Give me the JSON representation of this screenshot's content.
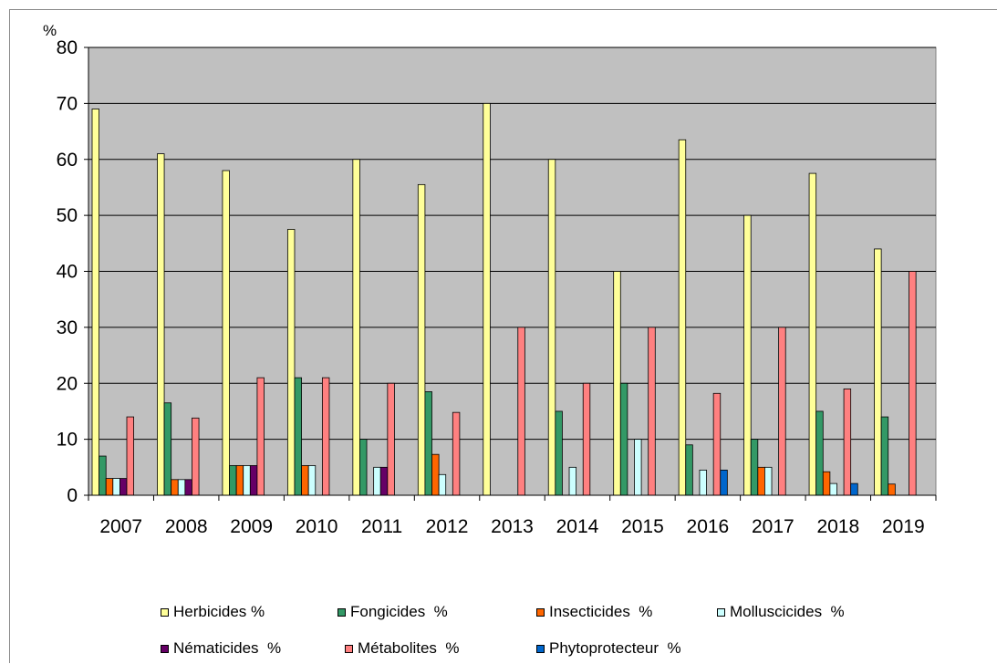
{
  "chart_data": {
    "type": "bar",
    "ylabel": "%",
    "ylim": [
      0,
      80
    ],
    "yticks": [
      0,
      10,
      20,
      30,
      40,
      50,
      60,
      70,
      80
    ],
    "grid": true,
    "legend_position": "bottom",
    "categories": [
      "2007",
      "2008",
      "2009",
      "2010",
      "2011",
      "2012",
      "2013",
      "2014",
      "2015",
      "2016",
      "2017",
      "2018",
      "2019"
    ],
    "series": [
      {
        "name": "Herbicides %",
        "color": "#ffff99",
        "values": [
          69,
          61,
          58,
          47.5,
          60,
          55.5,
          70,
          60,
          40,
          63.5,
          50,
          57.5,
          44
        ]
      },
      {
        "name": "Fongicides  %",
        "color": "#339966",
        "values": [
          7,
          16.5,
          5.3,
          21,
          10,
          18.5,
          0,
          15,
          20,
          9,
          10,
          15,
          14
        ]
      },
      {
        "name": "Insecticides  %",
        "color": "#ff6600",
        "values": [
          3,
          2.8,
          5.3,
          5.3,
          0,
          7.3,
          0,
          0,
          0,
          0,
          5,
          4.2,
          2
        ]
      },
      {
        "name": "Molluscicides  %",
        "color": "#ccffff",
        "values": [
          3,
          2.8,
          5.3,
          5.3,
          5,
          3.7,
          0,
          5,
          10,
          4.5,
          5,
          2.1,
          0
        ]
      },
      {
        "name": "Nématicides  %",
        "color": "#660066",
        "values": [
          3,
          2.8,
          5.3,
          0,
          5,
          0,
          0,
          0,
          0,
          0,
          0,
          0,
          0
        ]
      },
      {
        "name": "Métabolites  %",
        "color": "#ff8080",
        "values": [
          14,
          13.8,
          21,
          21,
          20,
          14.8,
          30,
          20,
          30,
          18.2,
          30,
          19,
          40
        ]
      },
      {
        "name": "Phytoprotecteur  %",
        "color": "#0066cc",
        "values": [
          0,
          0,
          0,
          0,
          0,
          0,
          0,
          0,
          0,
          4.5,
          0,
          2.1,
          0
        ]
      }
    ]
  }
}
